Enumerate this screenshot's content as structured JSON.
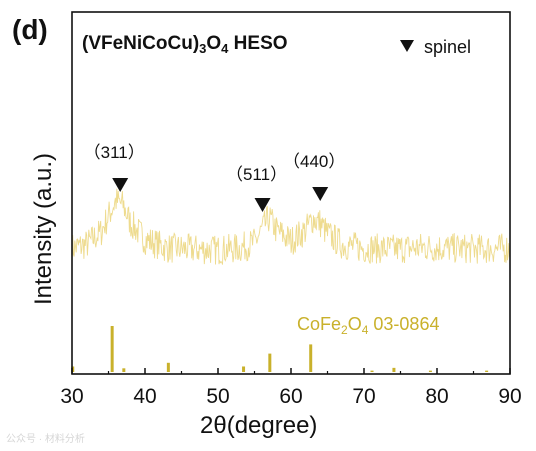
{
  "panel_label": "(d)",
  "title": {
    "main": "(VFeNiCoCu)",
    "sub1": "3",
    "mid": "O",
    "sub2": "4",
    "tail": " HESO"
  },
  "legend": {
    "label": "spinel"
  },
  "reference": {
    "pre": "CoFe",
    "sub1": "2",
    "mid": "O",
    "sub2": "4",
    "tail": " 03-0864"
  },
  "watermark": "公众号 · 材料分析",
  "colors": {
    "pattern": "#eedb8e",
    "reference": "#c9b12b",
    "axis": "#111111"
  },
  "chart_data": {
    "type": "line",
    "xlabel": "2θ(degree)",
    "ylabel": "Intensity (a.u.)",
    "xlim": [
      30,
      90
    ],
    "xticks": [
      30,
      40,
      50,
      60,
      70,
      80,
      90
    ],
    "grid": false,
    "y_axis_ticks": false,
    "series": [
      {
        "x": [
          30,
          32,
          34,
          35,
          36,
          37,
          38,
          40,
          43,
          46,
          50,
          53,
          55,
          56,
          57,
          58,
          60,
          62,
          63,
          64,
          65,
          67,
          70,
          74,
          78,
          82,
          86,
          90
        ],
        "y": [
          0.22,
          0.26,
          0.4,
          0.58,
          0.75,
          0.7,
          0.5,
          0.32,
          0.22,
          0.21,
          0.2,
          0.22,
          0.28,
          0.42,
          0.56,
          0.42,
          0.3,
          0.42,
          0.55,
          0.5,
          0.38,
          0.26,
          0.22,
          0.21,
          0.23,
          0.22,
          0.21,
          0.22
        ]
      }
    ],
    "peak_markers": [
      {
        "label": "（311）",
        "x": 36.6
      },
      {
        "label": "（511）",
        "x": 56.1
      },
      {
        "label": "（440）",
        "x": 64.0
      }
    ],
    "reference_sticks": {
      "x": [
        30.1,
        35.5,
        37.1,
        43.2,
        53.5,
        57.1,
        62.7,
        71.1,
        74.1,
        79.1,
        86.8
      ],
      "intensity": [
        0.12,
        1.0,
        0.08,
        0.2,
        0.12,
        0.4,
        0.6,
        0.03,
        0.09,
        0.03,
        0.03
      ]
    }
  }
}
